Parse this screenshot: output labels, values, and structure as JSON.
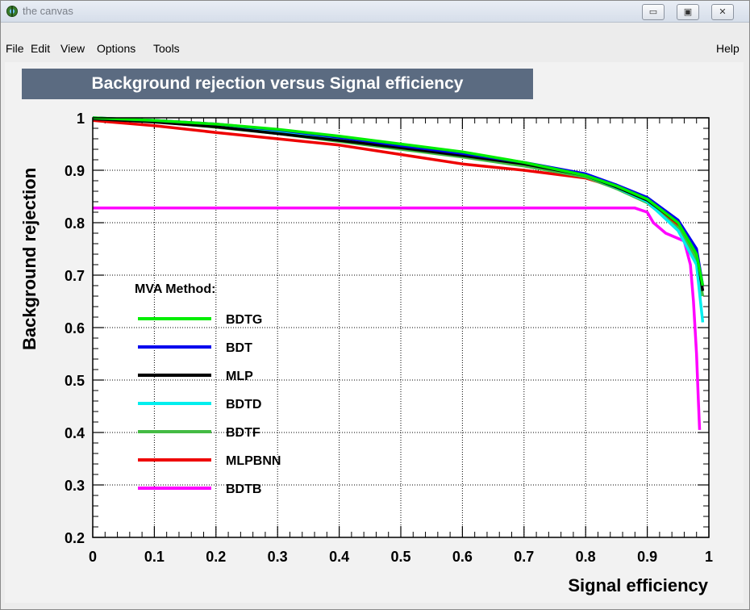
{
  "window": {
    "title": "the canvas",
    "minimize_glyph": "▭",
    "maximize_glyph": "▣",
    "close_glyph": "✕"
  },
  "menu": {
    "file": "File",
    "edit": "Edit",
    "view": "View",
    "options": "Options",
    "tools": "Tools",
    "help": "Help"
  },
  "icons": {
    "app": "root-app-icon"
  },
  "colors": {
    "BDTG": "#00ee00",
    "BDT": "#0000ee",
    "MLP": "#000000",
    "BDTD": "#00eeee",
    "BDTF": "#44bb44",
    "MLPBNN": "#ee0000",
    "BDTB": "#ff00ff",
    "title_bg": "#5b6b81"
  },
  "chart_data": {
    "type": "line",
    "title": "Background rejection versus Signal efficiency",
    "xlabel": "Signal efficiency",
    "ylabel": "Background rejection",
    "xlim": [
      0,
      1
    ],
    "ylim": [
      0.2,
      1
    ],
    "xticks": [
      "0",
      "0.1",
      "0.2",
      "0.3",
      "0.4",
      "0.5",
      "0.6",
      "0.7",
      "0.8",
      "0.9",
      "1"
    ],
    "yticks": [
      "0.2",
      "0.3",
      "0.4",
      "0.5",
      "0.6",
      "0.7",
      "0.8",
      "0.9",
      "1"
    ],
    "grid": true,
    "legend": {
      "title": "MVA Method:",
      "position": "center-left"
    },
    "series": [
      {
        "name": "BDTG",
        "x": [
          0,
          0.1,
          0.2,
          0.3,
          0.4,
          0.5,
          0.6,
          0.7,
          0.8,
          0.85,
          0.9,
          0.95,
          0.98,
          0.99
        ],
        "y": [
          1.0,
          0.995,
          0.988,
          0.978,
          0.965,
          0.95,
          0.935,
          0.915,
          0.89,
          0.87,
          0.845,
          0.8,
          0.74,
          0.68
        ]
      },
      {
        "name": "BDT",
        "x": [
          0,
          0.1,
          0.2,
          0.3,
          0.4,
          0.5,
          0.6,
          0.7,
          0.8,
          0.85,
          0.9,
          0.95,
          0.98,
          0.99
        ],
        "y": [
          1.0,
          0.995,
          0.988,
          0.977,
          0.963,
          0.947,
          0.932,
          0.915,
          0.893,
          0.872,
          0.848,
          0.805,
          0.75,
          0.68
        ]
      },
      {
        "name": "MLP",
        "x": [
          0,
          0.1,
          0.2,
          0.3,
          0.4,
          0.5,
          0.6,
          0.7,
          0.8,
          0.85,
          0.9,
          0.95,
          0.98,
          0.99
        ],
        "y": [
          0.998,
          0.992,
          0.983,
          0.97,
          0.957,
          0.943,
          0.928,
          0.912,
          0.89,
          0.868,
          0.843,
          0.8,
          0.745,
          0.67
        ]
      },
      {
        "name": "BDTD",
        "x": [
          0,
          0.1,
          0.2,
          0.3,
          0.4,
          0.5,
          0.6,
          0.7,
          0.8,
          0.85,
          0.9,
          0.95,
          0.98,
          0.99
        ],
        "y": [
          0.998,
          0.995,
          0.987,
          0.975,
          0.962,
          0.948,
          0.932,
          0.912,
          0.89,
          0.867,
          0.84,
          0.785,
          0.72,
          0.61
        ]
      },
      {
        "name": "BDTF",
        "x": [
          0,
          0.1,
          0.2,
          0.3,
          0.4,
          0.5,
          0.6,
          0.7,
          0.8,
          0.85,
          0.9,
          0.95,
          0.98,
          0.99
        ],
        "y": [
          0.998,
          0.993,
          0.982,
          0.97,
          0.955,
          0.94,
          0.925,
          0.908,
          0.887,
          0.865,
          0.838,
          0.79,
          0.73,
          0.66
        ]
      },
      {
        "name": "MLPBNN",
        "x": [
          0,
          0.1,
          0.2,
          0.3,
          0.4,
          0.5,
          0.6,
          0.7,
          0.8,
          0.82,
          0.85,
          0.9,
          0.95,
          0.98,
          0.99
        ],
        "y": [
          0.995,
          0.985,
          0.972,
          0.96,
          0.948,
          0.93,
          0.912,
          0.9,
          0.885,
          0.878,
          0.866,
          0.84,
          0.795,
          0.735,
          0.67
        ]
      },
      {
        "name": "BDTB",
        "x": [
          0,
          0.3,
          0.6,
          0.88,
          0.9,
          0.91,
          0.93,
          0.95,
          0.96,
          0.97,
          0.975,
          0.98,
          0.983,
          0.985
        ],
        "y": [
          0.828,
          0.828,
          0.828,
          0.828,
          0.82,
          0.8,
          0.78,
          0.77,
          0.765,
          0.72,
          0.65,
          0.55,
          0.46,
          0.405
        ]
      }
    ]
  }
}
